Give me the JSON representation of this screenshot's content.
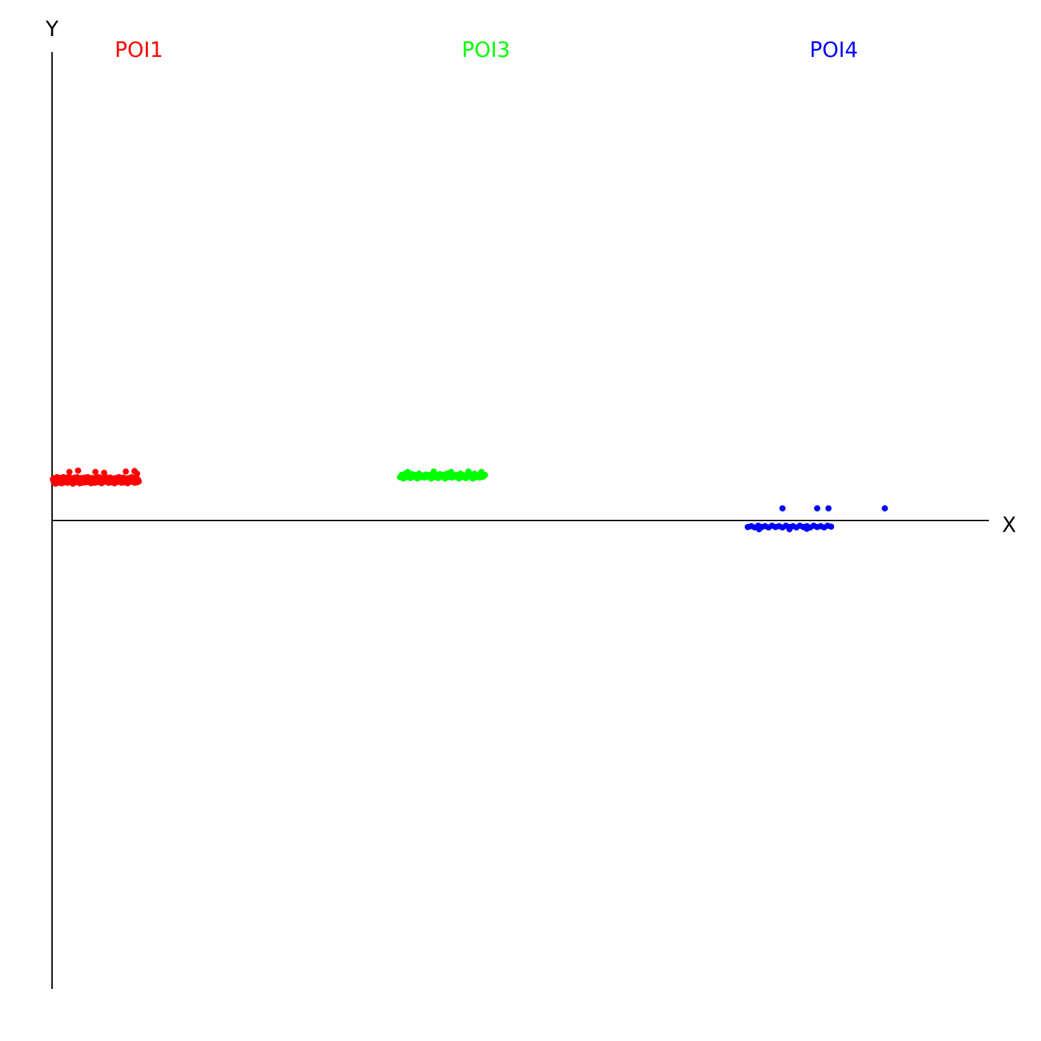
{
  "chart_data": {
    "type": "scatter",
    "xlabel": "X",
    "ylabel": "Y",
    "grid": false,
    "series": [
      {
        "name": "POI1",
        "color": "#ff0000",
        "points": [
          [
            0.01,
            0.095
          ],
          [
            0.02,
            0.088
          ],
          [
            0.03,
            0.098
          ],
          [
            0.04,
            0.085
          ],
          [
            0.05,
            0.092
          ],
          [
            0.06,
            0.1
          ],
          [
            0.07,
            0.087
          ],
          [
            0.08,
            0.095
          ],
          [
            0.09,
            0.09
          ],
          [
            0.1,
            0.098
          ],
          [
            0.11,
            0.086
          ],
          [
            0.12,
            0.094
          ],
          [
            0.13,
            0.1
          ],
          [
            0.14,
            0.088
          ],
          [
            0.15,
            0.096
          ],
          [
            0.16,
            0.09
          ],
          [
            0.17,
            0.099
          ],
          [
            0.18,
            0.087
          ],
          [
            0.19,
            0.093
          ],
          [
            0.2,
            0.1
          ],
          [
            0.21,
            0.089
          ],
          [
            0.22,
            0.097
          ],
          [
            0.23,
            0.091
          ],
          [
            0.24,
            0.085
          ],
          [
            0.25,
            0.095
          ],
          [
            0.26,
            0.099
          ],
          [
            0.27,
            0.088
          ],
          [
            0.28,
            0.094
          ],
          [
            0.29,
            0.1
          ],
          [
            0.3,
            0.09
          ],
          [
            0.31,
            0.096
          ],
          [
            0.32,
            0.086
          ],
          [
            0.33,
            0.092
          ],
          [
            0.34,
            0.098
          ],
          [
            0.35,
            0.087
          ],
          [
            0.36,
            0.095
          ],
          [
            0.37,
            0.091
          ],
          [
            0.38,
            0.099
          ],
          [
            0.39,
            0.088
          ],
          [
            0.4,
            0.094
          ],
          [
            0.41,
            0.1
          ],
          [
            0.42,
            0.089
          ],
          [
            0.43,
            0.096
          ],
          [
            0.44,
            0.092
          ],
          [
            0.45,
            0.086
          ],
          [
            0.46,
            0.098
          ],
          [
            0.47,
            0.09
          ],
          [
            0.48,
            0.095
          ],
          [
            0.49,
            0.087
          ],
          [
            0.5,
            0.093
          ],
          [
            0.51,
            0.099
          ],
          [
            0.52,
            0.088
          ],
          [
            0.53,
            0.094
          ],
          [
            0.54,
            0.1
          ],
          [
            0.55,
            0.091
          ],
          [
            0.56,
            0.097
          ],
          [
            0.57,
            0.086
          ],
          [
            0.58,
            0.092
          ],
          [
            0.59,
            0.098
          ],
          [
            0.6,
            0.089
          ],
          [
            0.61,
            0.095
          ],
          [
            0.62,
            0.1
          ],
          [
            0.63,
            0.09
          ],
          [
            0.64,
            0.096
          ],
          [
            0.65,
            0.087
          ],
          [
            0.66,
            0.093
          ],
          [
            0.67,
            0.099
          ],
          [
            0.68,
            0.088
          ],
          [
            0.69,
            0.094
          ],
          [
            0.7,
            0.09
          ],
          [
            0.71,
            0.097
          ],
          [
            0.72,
            0.086
          ],
          [
            0.73,
            0.092
          ],
          [
            0.74,
            0.098
          ],
          [
            0.75,
            0.089
          ],
          [
            0.76,
            0.095
          ],
          [
            0.77,
            0.1
          ],
          [
            0.78,
            0.091
          ],
          [
            0.79,
            0.096
          ],
          [
            0.8,
            0.087
          ],
          [
            0.81,
            0.093
          ],
          [
            0.82,
            0.099
          ],
          [
            0.83,
            0.088
          ],
          [
            0.84,
            0.094
          ],
          [
            0.85,
            0.09
          ],
          [
            0.86,
            0.097
          ],
          [
            0.87,
            0.086
          ],
          [
            0.88,
            0.092
          ],
          [
            0.89,
            0.098
          ],
          [
            0.9,
            0.089
          ],
          [
            0.91,
            0.095
          ],
          [
            0.92,
            0.1
          ],
          [
            0.93,
            0.091
          ],
          [
            0.94,
            0.096
          ],
          [
            0.95,
            0.087
          ],
          [
            0.96,
            0.093
          ],
          [
            0.97,
            0.099
          ],
          [
            0.98,
            0.088
          ],
          [
            0.99,
            0.094
          ],
          [
            1.0,
            0.09
          ],
          [
            0.2,
            0.112
          ],
          [
            0.3,
            0.115
          ],
          [
            0.5,
            0.112
          ],
          [
            0.6,
            0.11
          ],
          [
            0.85,
            0.113
          ],
          [
            0.95,
            0.114
          ],
          [
            0.98,
            0.108
          ]
        ]
      },
      {
        "name": "POI3",
        "color": "#00ff00",
        "points": [
          [
            4.01,
            0.1
          ],
          [
            4.03,
            0.105
          ],
          [
            4.05,
            0.097
          ],
          [
            4.07,
            0.108
          ],
          [
            4.09,
            0.1
          ],
          [
            4.11,
            0.104
          ],
          [
            4.13,
            0.098
          ],
          [
            4.15,
            0.107
          ],
          [
            4.17,
            0.101
          ],
          [
            4.19,
            0.105
          ],
          [
            4.21,
            0.097
          ],
          [
            4.23,
            0.108
          ],
          [
            4.25,
            0.1
          ],
          [
            4.27,
            0.104
          ],
          [
            4.29,
            0.099
          ],
          [
            4.31,
            0.106
          ],
          [
            4.33,
            0.101
          ],
          [
            4.35,
            0.105
          ],
          [
            4.37,
            0.097
          ],
          [
            4.39,
            0.108
          ],
          [
            4.41,
            0.1
          ],
          [
            4.43,
            0.104
          ],
          [
            4.45,
            0.098
          ],
          [
            4.47,
            0.107
          ],
          [
            4.49,
            0.101
          ],
          [
            4.51,
            0.105
          ],
          [
            4.53,
            0.097
          ],
          [
            4.55,
            0.108
          ],
          [
            4.57,
            0.1
          ],
          [
            4.59,
            0.104
          ],
          [
            4.61,
            0.099
          ],
          [
            4.63,
            0.106
          ],
          [
            4.65,
            0.101
          ],
          [
            4.67,
            0.105
          ],
          [
            4.69,
            0.097
          ],
          [
            4.71,
            0.108
          ],
          [
            4.73,
            0.1
          ],
          [
            4.75,
            0.104
          ],
          [
            4.77,
            0.098
          ],
          [
            4.79,
            0.107
          ],
          [
            4.81,
            0.101
          ],
          [
            4.83,
            0.105
          ],
          [
            4.85,
            0.097
          ],
          [
            4.87,
            0.108
          ],
          [
            4.89,
            0.1
          ],
          [
            4.91,
            0.104
          ],
          [
            4.93,
            0.099
          ],
          [
            4.95,
            0.106
          ],
          [
            4.97,
            0.101
          ],
          [
            4.99,
            0.105
          ],
          [
            4.1,
            0.112
          ],
          [
            4.4,
            0.113
          ],
          [
            4.6,
            0.112
          ],
          [
            4.8,
            0.113
          ],
          [
            4.95,
            0.112
          ]
        ]
      },
      {
        "name": "POI4",
        "color": "#0000ff",
        "points": [
          [
            8.02,
            -0.015
          ],
          [
            8.06,
            -0.013
          ],
          [
            8.1,
            -0.016
          ],
          [
            8.14,
            -0.012
          ],
          [
            8.18,
            -0.015
          ],
          [
            8.22,
            -0.013
          ],
          [
            8.26,
            -0.016
          ],
          [
            8.3,
            -0.012
          ],
          [
            8.34,
            -0.015
          ],
          [
            8.38,
            -0.013
          ],
          [
            8.42,
            -0.016
          ],
          [
            8.46,
            -0.012
          ],
          [
            8.5,
            -0.015
          ],
          [
            8.54,
            -0.013
          ],
          [
            8.58,
            -0.016
          ],
          [
            8.62,
            -0.012
          ],
          [
            8.66,
            -0.015
          ],
          [
            8.7,
            -0.013
          ],
          [
            8.74,
            -0.016
          ],
          [
            8.78,
            -0.012
          ],
          [
            8.82,
            -0.015
          ],
          [
            8.86,
            -0.013
          ],
          [
            8.9,
            -0.016
          ],
          [
            8.94,
            -0.012
          ],
          [
            8.98,
            -0.014
          ],
          [
            8.15,
            -0.02
          ],
          [
            8.5,
            -0.02
          ],
          [
            8.7,
            -0.019
          ],
          [
            8.42,
            0.028
          ],
          [
            8.82,
            0.028
          ],
          [
            8.95,
            0.028
          ],
          [
            9.6,
            0.028
          ]
        ]
      }
    ]
  }
}
